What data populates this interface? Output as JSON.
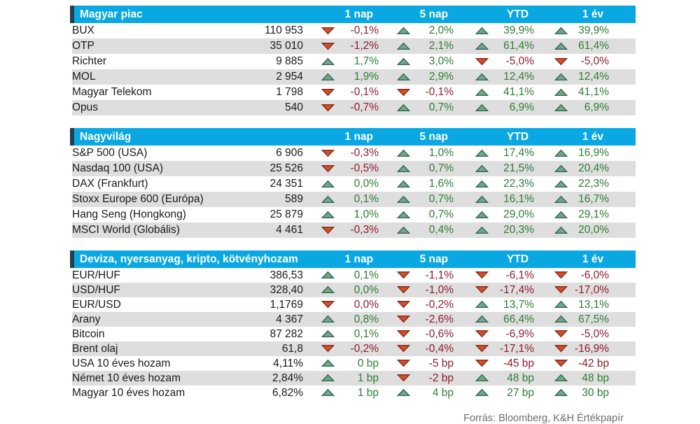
{
  "chart_data": [
    {
      "type": "table",
      "title": "Magyar piac",
      "columns": [
        "1 nap",
        "5 nap",
        "YTD",
        "1 év"
      ],
      "rows": [
        {
          "name": "BUX",
          "value": "110 953",
          "changes": [
            {
              "dir": "down",
              "text": "-0,1%"
            },
            {
              "dir": "up",
              "text": "2,0%"
            },
            {
              "dir": "up",
              "text": "39,9%"
            },
            {
              "dir": "up",
              "text": "39,9%"
            }
          ]
        },
        {
          "name": "OTP",
          "value": "35 010",
          "changes": [
            {
              "dir": "down",
              "text": "-1,2%"
            },
            {
              "dir": "up",
              "text": "2,1%"
            },
            {
              "dir": "up",
              "text": "61,4%"
            },
            {
              "dir": "up",
              "text": "61,4%"
            }
          ]
        },
        {
          "name": "Richter",
          "value": "9 885",
          "changes": [
            {
              "dir": "up",
              "text": "1,7%"
            },
            {
              "dir": "up",
              "text": "3,0%"
            },
            {
              "dir": "down",
              "text": "-5,0%"
            },
            {
              "dir": "down",
              "text": "-5,0%"
            }
          ]
        },
        {
          "name": "MOL",
          "value": "2 954",
          "changes": [
            {
              "dir": "up",
              "text": "1,9%"
            },
            {
              "dir": "up",
              "text": "2,9%"
            },
            {
              "dir": "up",
              "text": "12,4%"
            },
            {
              "dir": "up",
              "text": "12,4%"
            }
          ]
        },
        {
          "name": "Magyar Telekom",
          "value": "1 798",
          "changes": [
            {
              "dir": "down",
              "text": "-0,1%"
            },
            {
              "dir": "down",
              "text": "-0,1%"
            },
            {
              "dir": "up",
              "text": "41,1%"
            },
            {
              "dir": "up",
              "text": "41,1%"
            }
          ]
        },
        {
          "name": "Opus",
          "value": "540",
          "changes": [
            {
              "dir": "down",
              "text": "-0,7%"
            },
            {
              "dir": "up",
              "text": "0,7%"
            },
            {
              "dir": "up",
              "text": "6,9%"
            },
            {
              "dir": "up",
              "text": "6,9%"
            }
          ]
        }
      ]
    },
    {
      "type": "table",
      "title": "Nagyvilág",
      "columns": [
        "1 nap",
        "5 nap",
        "YTD",
        "1 év"
      ],
      "rows": [
        {
          "name": "S&P 500 (USA)",
          "value": "6 906",
          "changes": [
            {
              "dir": "down",
              "text": "-0,3%"
            },
            {
              "dir": "up",
              "text": "1,0%"
            },
            {
              "dir": "up",
              "text": "17,4%"
            },
            {
              "dir": "up",
              "text": "16,9%"
            }
          ]
        },
        {
          "name": "Nasdaq 100 (USA)",
          "value": "25 526",
          "changes": [
            {
              "dir": "down",
              "text": "-0,5%"
            },
            {
              "dir": "up",
              "text": "0,7%"
            },
            {
              "dir": "up",
              "text": "21,5%"
            },
            {
              "dir": "up",
              "text": "20,4%"
            }
          ]
        },
        {
          "name": "DAX (Frankfurt)",
          "value": "24 351",
          "changes": [
            {
              "dir": "up",
              "text": "0,0%"
            },
            {
              "dir": "up",
              "text": "1,6%"
            },
            {
              "dir": "up",
              "text": "22,3%"
            },
            {
              "dir": "up",
              "text": "22,3%"
            }
          ]
        },
        {
          "name": "Stoxx Europe 600 (Európa)",
          "value": "589",
          "changes": [
            {
              "dir": "up",
              "text": "0,1%"
            },
            {
              "dir": "up",
              "text": "0,7%"
            },
            {
              "dir": "up",
              "text": "16,1%"
            },
            {
              "dir": "up",
              "text": "16,7%"
            }
          ]
        },
        {
          "name": "Hang Seng (Hongkong)",
          "value": "25 879",
          "changes": [
            {
              "dir": "up",
              "text": "1,0%"
            },
            {
              "dir": "up",
              "text": "0,7%"
            },
            {
              "dir": "up",
              "text": "29,0%"
            },
            {
              "dir": "up",
              "text": "29,1%"
            }
          ]
        },
        {
          "name": "MSCI World (Globális)",
          "value": "4 461",
          "changes": [
            {
              "dir": "down",
              "text": "-0,3%"
            },
            {
              "dir": "up",
              "text": "0,4%"
            },
            {
              "dir": "up",
              "text": "20,3%"
            },
            {
              "dir": "up",
              "text": "20,0%"
            }
          ]
        }
      ]
    },
    {
      "type": "table",
      "title": "Deviza, nyersanyag, kripto, kötvényhozam",
      "columns": [
        "1 nap",
        "5 nap",
        "YTD",
        "1 év"
      ],
      "rows": [
        {
          "name": "EUR/HUF",
          "value": "386,53",
          "changes": [
            {
              "dir": "up",
              "text": "0,1%"
            },
            {
              "dir": "down",
              "text": "-1,1%"
            },
            {
              "dir": "down",
              "text": "-6,1%"
            },
            {
              "dir": "down",
              "text": "-6,0%"
            }
          ]
        },
        {
          "name": "USD/HUF",
          "value": "328,40",
          "changes": [
            {
              "dir": "up",
              "text": "0,0%"
            },
            {
              "dir": "down",
              "text": "-1,0%"
            },
            {
              "dir": "down",
              "text": "-17,4%"
            },
            {
              "dir": "down",
              "text": "-17,0%"
            }
          ]
        },
        {
          "name": "EUR/USD",
          "value": "1,1769",
          "changes": [
            {
              "dir": "down",
              "text": "0,0%"
            },
            {
              "dir": "down",
              "text": "-0,2%"
            },
            {
              "dir": "up",
              "text": "13,7%"
            },
            {
              "dir": "up",
              "text": "13,1%"
            }
          ]
        },
        {
          "name": "Arany",
          "value": "4 367",
          "changes": [
            {
              "dir": "up",
              "text": "0,8%"
            },
            {
              "dir": "down",
              "text": "-2,6%"
            },
            {
              "dir": "up",
              "text": "66,4%"
            },
            {
              "dir": "up",
              "text": "67,5%"
            }
          ]
        },
        {
          "name": "Bitcoin",
          "value": "87 282",
          "changes": [
            {
              "dir": "up",
              "text": "0,1%"
            },
            {
              "dir": "down",
              "text": "-0,6%"
            },
            {
              "dir": "down",
              "text": "-6,9%"
            },
            {
              "dir": "down",
              "text": "-5,0%"
            }
          ]
        },
        {
          "name": "Brent olaj",
          "value": "61,8",
          "changes": [
            {
              "dir": "down",
              "text": "-0,2%"
            },
            {
              "dir": "down",
              "text": "-0,4%"
            },
            {
              "dir": "down",
              "text": "-17,1%"
            },
            {
              "dir": "down",
              "text": "-16,9%"
            }
          ]
        },
        {
          "name": "USA 10 éves hozam",
          "value": "4,11%",
          "changes": [
            {
              "dir": "up",
              "text": "0 bp"
            },
            {
              "dir": "down",
              "text": "-5 bp"
            },
            {
              "dir": "down",
              "text": "-45 bp"
            },
            {
              "dir": "down",
              "text": "-42 bp"
            }
          ]
        },
        {
          "name": "Német 10 éves hozam",
          "value": "2,84%",
          "changes": [
            {
              "dir": "up",
              "text": "1 bp"
            },
            {
              "dir": "down",
              "text": "-2 bp"
            },
            {
              "dir": "up",
              "text": "48 bp"
            },
            {
              "dir": "up",
              "text": "48 bp"
            }
          ]
        },
        {
          "name": "Magyar 10 éves hozam",
          "value": "6,82%",
          "changes": [
            {
              "dir": "up",
              "text": "1 bp"
            },
            {
              "dir": "up",
              "text": "4 bp"
            },
            {
              "dir": "up",
              "text": "27 bp"
            },
            {
              "dir": "up",
              "text": "30 bp"
            }
          ]
        }
      ]
    }
  ],
  "footer": {
    "source": "Forrás: Bloomberg, K&H Értékpapír"
  },
  "colors": {
    "header_bg": "#09A8E3",
    "header_accent": "#20404F",
    "row_stripe": "#DEDEDE",
    "positive_text": "#2E7D33",
    "negative_text": "#8E1D30",
    "arrow_up_fill": "#77A58C",
    "arrow_up_stroke": "#2F6B50",
    "arrow_down_fill": "#D2512D",
    "arrow_down_stroke": "#8A2C1B"
  }
}
